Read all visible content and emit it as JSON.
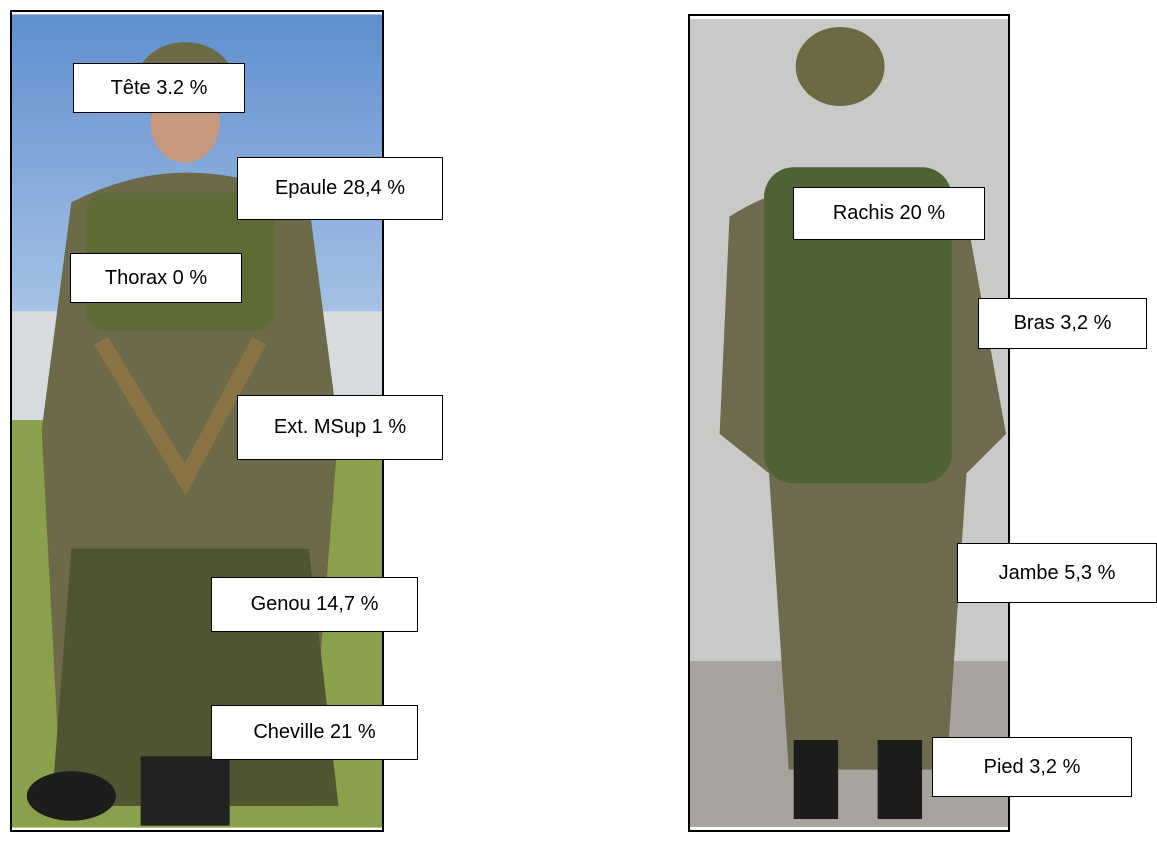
{
  "panels": [
    {
      "labels": [
        "Tête 3.2 %",
        "Epaule 28,4 %",
        "Thorax 0 %",
        "Ext. MSup 1 %",
        "Genou 14,7 %",
        "Cheville 21 %"
      ]
    },
    {
      "labels": [
        "Rachis 20 %",
        "Bras 3,2 %",
        "Jambe 5,3 %",
        "Pied 3,2 %"
      ]
    }
  ]
}
